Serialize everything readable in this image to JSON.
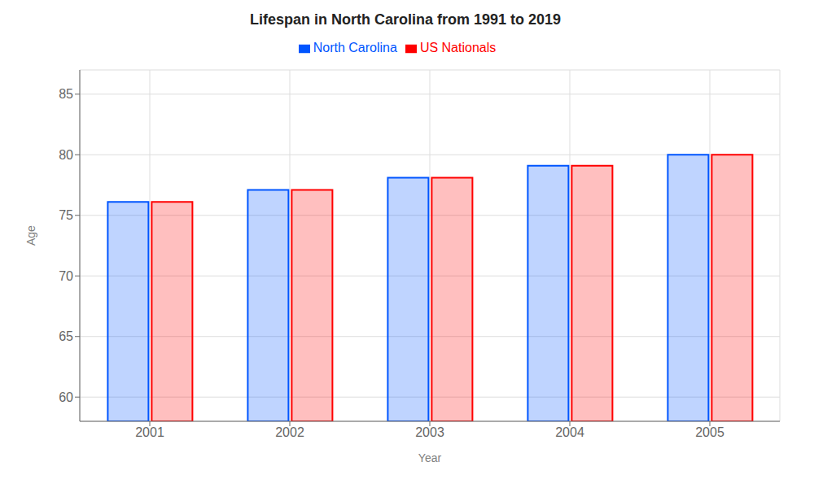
{
  "chart_data": {
    "type": "bar",
    "title": "Lifespan in North Carolina from 1991 to 2019",
    "x_label": "Year",
    "y_label": "Age",
    "categories": [
      "2001",
      "2002",
      "2003",
      "2004",
      "2005"
    ],
    "series": [
      {
        "name": "North Carolina",
        "color": "#0055ff",
        "values": [
          76.1,
          77.1,
          78.1,
          79.1,
          80.0
        ]
      },
      {
        "name": "US Nationals",
        "color": "#ff0000",
        "values": [
          76.1,
          77.1,
          78.1,
          79.1,
          80.0
        ]
      }
    ],
    "ylim": [
      58,
      87
    ],
    "yticks": [
      60,
      65,
      70,
      75,
      80,
      85
    ],
    "grid": true,
    "legend": "top"
  }
}
